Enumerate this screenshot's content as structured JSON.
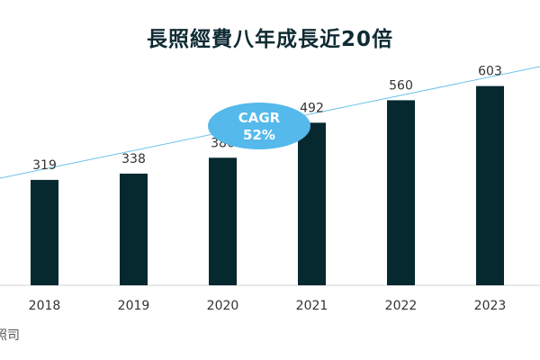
{
  "title": "長照經費八年成長近20倍",
  "source": "照司",
  "chart_data": {
    "type": "bar",
    "categories": [
      "2018",
      "2019",
      "2020",
      "2021",
      "2022",
      "2023"
    ],
    "values": [
      319,
      338,
      386,
      492,
      560,
      603
    ],
    "ylim": [
      0,
      700
    ],
    "grid": false,
    "bar_color": "#06282f",
    "annotation": {
      "lines": [
        "CAGR",
        "52%"
      ],
      "fill": "#55b9ec",
      "trend_line_color": "#6cc3ea"
    }
  }
}
